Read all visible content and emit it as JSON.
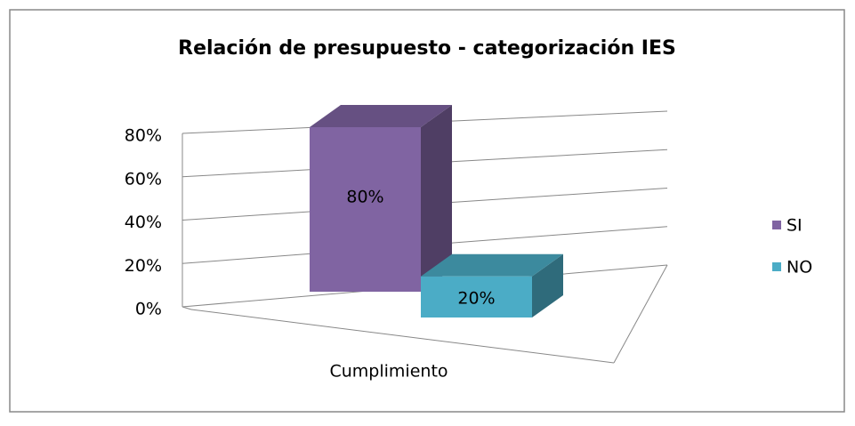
{
  "chart_data": {
    "type": "bar",
    "title": "Relación de presupuesto - categorización IES",
    "categories": [
      "Cumplimiento"
    ],
    "series": [
      {
        "name": "SI",
        "color": "#8064a2",
        "values": [
          80
        ],
        "value_labels": [
          "80%"
        ]
      },
      {
        "name": "NO",
        "color": "#4bacc6",
        "values": [
          20
        ],
        "value_labels": [
          "20%"
        ]
      }
    ],
    "ylim": [
      0,
      80
    ],
    "yticks": [
      {
        "value": 0,
        "label": "0%"
      },
      {
        "value": 20,
        "label": "20%"
      },
      {
        "value": 40,
        "label": "40%"
      },
      {
        "value": 60,
        "label": "60%"
      },
      {
        "value": 80,
        "label": "80%"
      }
    ],
    "grid": true,
    "legend": "right"
  }
}
